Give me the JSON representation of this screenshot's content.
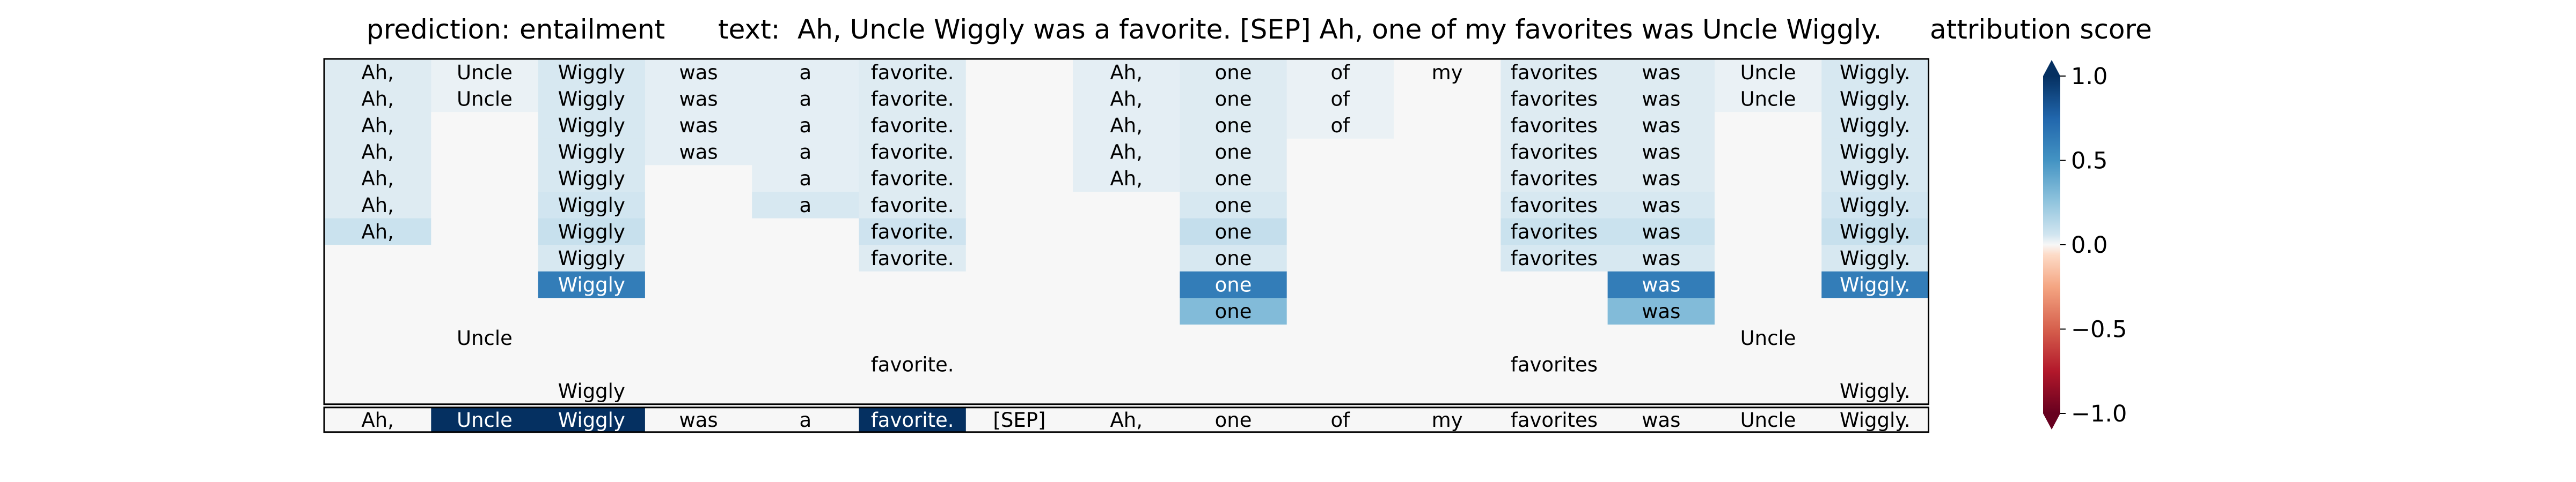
{
  "header": {
    "prediction_label": "prediction:",
    "prediction_value": "entailment",
    "text_label": "text:",
    "text_value": "Ah, Uncle Wiggly was a favorite. [SEP] Ah, one of my favorites was Uncle Wiggly.",
    "colorbar_title": "attribution score"
  },
  "chart_data": {
    "type": "heatmap",
    "tokens": [
      "Ah,",
      "Uncle",
      "Wiggly",
      "was",
      "a",
      "favorite.",
      "[SEP]",
      "Ah,",
      "one",
      "of",
      "my",
      "favorites",
      "was",
      "Uncle",
      "Wiggly."
    ],
    "rows": [
      [
        0.04,
        0.02,
        0.05,
        0.03,
        0.03,
        0.04,
        0.0,
        0.03,
        0.04,
        0.02,
        0.0,
        0.04,
        0.04,
        0.02,
        0.05
      ],
      [
        0.04,
        0.02,
        0.05,
        0.03,
        0.03,
        0.04,
        0.0,
        0.03,
        0.04,
        0.02,
        0.0,
        0.04,
        0.04,
        0.02,
        0.05
      ],
      [
        0.04,
        0.0,
        0.05,
        0.03,
        0.03,
        0.04,
        0.0,
        0.03,
        0.04,
        0.02,
        0.0,
        0.04,
        0.04,
        0.0,
        0.05
      ],
      [
        0.04,
        0.0,
        0.05,
        0.03,
        0.03,
        0.04,
        0.0,
        0.03,
        0.04,
        0.0,
        0.0,
        0.04,
        0.04,
        0.0,
        0.05
      ],
      [
        0.04,
        0.0,
        0.05,
        0.0,
        0.03,
        0.04,
        0.0,
        0.03,
        0.04,
        0.0,
        0.0,
        0.04,
        0.04,
        0.0,
        0.05
      ],
      [
        0.04,
        0.0,
        0.06,
        0.0,
        0.05,
        0.04,
        0.0,
        0.0,
        0.05,
        0.0,
        0.0,
        0.05,
        0.05,
        0.0,
        0.06
      ],
      [
        0.08,
        0.0,
        0.09,
        0.0,
        0.0,
        0.07,
        0.0,
        0.0,
        0.1,
        0.0,
        0.0,
        0.08,
        0.08,
        0.0,
        0.09
      ],
      [
        0.0,
        0.0,
        0.05,
        0.0,
        0.0,
        0.04,
        0.0,
        0.0,
        0.05,
        0.0,
        0.0,
        0.05,
        0.05,
        0.0,
        0.05
      ],
      [
        0.0,
        0.0,
        0.62,
        0.0,
        0.0,
        0.0,
        0.0,
        0.0,
        0.62,
        0.0,
        0.0,
        0.0,
        0.62,
        0.0,
        0.62
      ],
      [
        0.0,
        0.0,
        0.0,
        0.0,
        0.0,
        0.0,
        0.0,
        0.0,
        0.3,
        0.0,
        0.0,
        0.0,
        0.3,
        0.0,
        0.0
      ],
      [
        0.0,
        0.0,
        0.0,
        0.0,
        0.0,
        0.0,
        0.0,
        0.0,
        0.0,
        0.0,
        0.0,
        0.0,
        0.0,
        0.0,
        0.0
      ],
      [
        0.0,
        0.0,
        0.0,
        0.0,
        0.0,
        0.0,
        0.0,
        0.0,
        0.0,
        0.0,
        0.0,
        0.0,
        0.0,
        0.0,
        0.0
      ],
      [
        0.0,
        0.0,
        0.0,
        0.0,
        0.0,
        0.0,
        0.0,
        0.0,
        0.0,
        0.0,
        0.0,
        0.0,
        0.0,
        0.0,
        0.0
      ]
    ],
    "row_labels": [
      [
        "Ah,",
        "Uncle",
        "Wiggly",
        "was",
        "a",
        "favorite.",
        "",
        "Ah,",
        "one",
        "of",
        "my",
        "favorites",
        "was",
        "Uncle",
        "Wiggly."
      ],
      [
        "Ah,",
        "Uncle",
        "Wiggly",
        "was",
        "a",
        "favorite.",
        "",
        "Ah,",
        "one",
        "of",
        "",
        "favorites",
        "was",
        "Uncle",
        "Wiggly."
      ],
      [
        "Ah,",
        "",
        "Wiggly",
        "was",
        "a",
        "favorite.",
        "",
        "Ah,",
        "one",
        "of",
        "",
        "favorites",
        "was",
        "",
        "Wiggly."
      ],
      [
        "Ah,",
        "",
        "Wiggly",
        "was",
        "a",
        "favorite.",
        "",
        "Ah,",
        "one",
        "",
        "",
        "favorites",
        "was",
        "",
        "Wiggly."
      ],
      [
        "Ah,",
        "",
        "Wiggly",
        "",
        "a",
        "favorite.",
        "",
        "Ah,",
        "one",
        "",
        "",
        "favorites",
        "was",
        "",
        "Wiggly."
      ],
      [
        "Ah,",
        "",
        "Wiggly",
        "",
        "a",
        "favorite.",
        "",
        "",
        "one",
        "",
        "",
        "favorites",
        "was",
        "",
        "Wiggly."
      ],
      [
        "Ah,",
        "",
        "Wiggly",
        "",
        "",
        "favorite.",
        "",
        "",
        "one",
        "",
        "",
        "favorites",
        "was",
        "",
        "Wiggly."
      ],
      [
        "",
        "",
        "Wiggly",
        "",
        "",
        "favorite.",
        "",
        "",
        "one",
        "",
        "",
        "favorites",
        "was",
        "",
        "Wiggly."
      ],
      [
        "",
        "",
        "Wiggly",
        "",
        "",
        "",
        "",
        "",
        "one",
        "",
        "",
        "",
        "was",
        "",
        "Wiggly."
      ],
      [
        "",
        "",
        "",
        "",
        "",
        "",
        "",
        "",
        "one",
        "",
        "",
        "",
        "was",
        "",
        ""
      ],
      [
        "",
        "Uncle",
        "",
        "",
        "",
        "",
        "",
        "",
        "",
        "",
        "",
        "",
        "",
        "Uncle",
        ""
      ],
      [
        "",
        "",
        "",
        "",
        "",
        "favorite.",
        "",
        "",
        "",
        "",
        "",
        "favorites",
        "",
        "",
        ""
      ],
      [
        "",
        "",
        "Wiggly",
        "",
        "",
        "",
        "",
        "",
        "",
        "",
        "",
        "",
        "",
        "",
        "Wiggly."
      ]
    ],
    "summary_row": [
      0.0,
      1.0,
      1.0,
      0.0,
      0.0,
      1.0,
      0.0,
      0.0,
      0.0,
      0.0,
      0.0,
      0.0,
      0.0,
      0.0,
      0.0
    ],
    "colorbar": {
      "min": -1.0,
      "max": 1.0,
      "ticks": [
        1.0,
        0.5,
        0.0,
        -0.5,
        -1.0
      ],
      "tick_labels": [
        "1.0",
        "0.5",
        "0.0",
        "−0.5",
        "−1.0"
      ],
      "colormap": "RdBu",
      "extend": "both"
    }
  }
}
